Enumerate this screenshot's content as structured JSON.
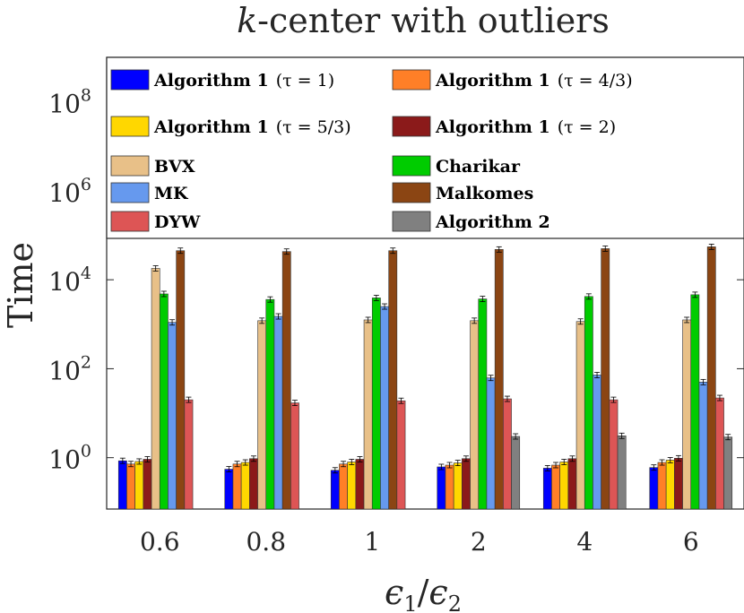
{
  "chart_data": {
    "type": "bar",
    "title_italic": "k",
    "title_rest": "-center with outliers",
    "ylabel": "Time",
    "xlabel": "ϵ1/ϵ2",
    "yscale": "log",
    "ylim": [
      0.07,
      1000000000
    ],
    "y_ticks": [
      {
        "value": 1,
        "base": "10",
        "exp": "0"
      },
      {
        "value": 100,
        "base": "10",
        "exp": "2"
      },
      {
        "value": 10000,
        "base": "10",
        "exp": "4"
      },
      {
        "value": 1000000,
        "base": "10",
        "exp": "6"
      },
      {
        "value": 100000000,
        "base": "10",
        "exp": "8"
      }
    ],
    "categories": [
      "0.6",
      "0.8",
      "1",
      "2",
      "4",
      "6"
    ],
    "series": [
      {
        "name": "Algorithm 1",
        "tau": "(τ = 1)",
        "color": "#0000ff",
        "values": [
          0.85,
          0.55,
          0.52,
          0.62,
          0.58,
          0.6
        ]
      },
      {
        "name": "Algorithm 1",
        "tau": "(τ = 4/3)",
        "color": "#ff7f27",
        "values": [
          0.72,
          0.72,
          0.72,
          0.68,
          0.68,
          0.78
        ]
      },
      {
        "name": "Algorithm 1",
        "tau": "(τ = 5/3)",
        "color": "#ffd700",
        "values": [
          0.82,
          0.78,
          0.8,
          0.76,
          0.8,
          0.88
        ]
      },
      {
        "name": "Algorithm 1",
        "tau": "(τ = 2)",
        "color": "#8b1a1a",
        "values": [
          0.92,
          0.95,
          0.92,
          0.95,
          0.95,
          0.97
        ]
      },
      {
        "name": "BVX",
        "color": "#e8c088",
        "values": [
          18000,
          1200,
          1250,
          1200,
          1150,
          1250
        ]
      },
      {
        "name": "Charikar",
        "color": "#00cc00",
        "values": [
          4800,
          3600,
          3900,
          3700,
          4200,
          4600
        ]
      },
      {
        "name": "MK",
        "color": "#6699ee",
        "values": [
          1100,
          1500,
          2500,
          62,
          72,
          50
        ]
      },
      {
        "name": "Malkomes",
        "color": "#8b4513",
        "values": [
          45000,
          43000,
          45000,
          48000,
          50000,
          55000
        ]
      },
      {
        "name": "DYW",
        "color": "#dd5555",
        "values": [
          20,
          17,
          19,
          21,
          20,
          22
        ]
      },
      {
        "name": "Algorithm 2",
        "color": "#808080",
        "values": [
          null,
          null,
          null,
          3.0,
          3.1,
          2.9
        ]
      }
    ],
    "legend_placement": "top, inside plot area, two columns",
    "grid": false
  }
}
